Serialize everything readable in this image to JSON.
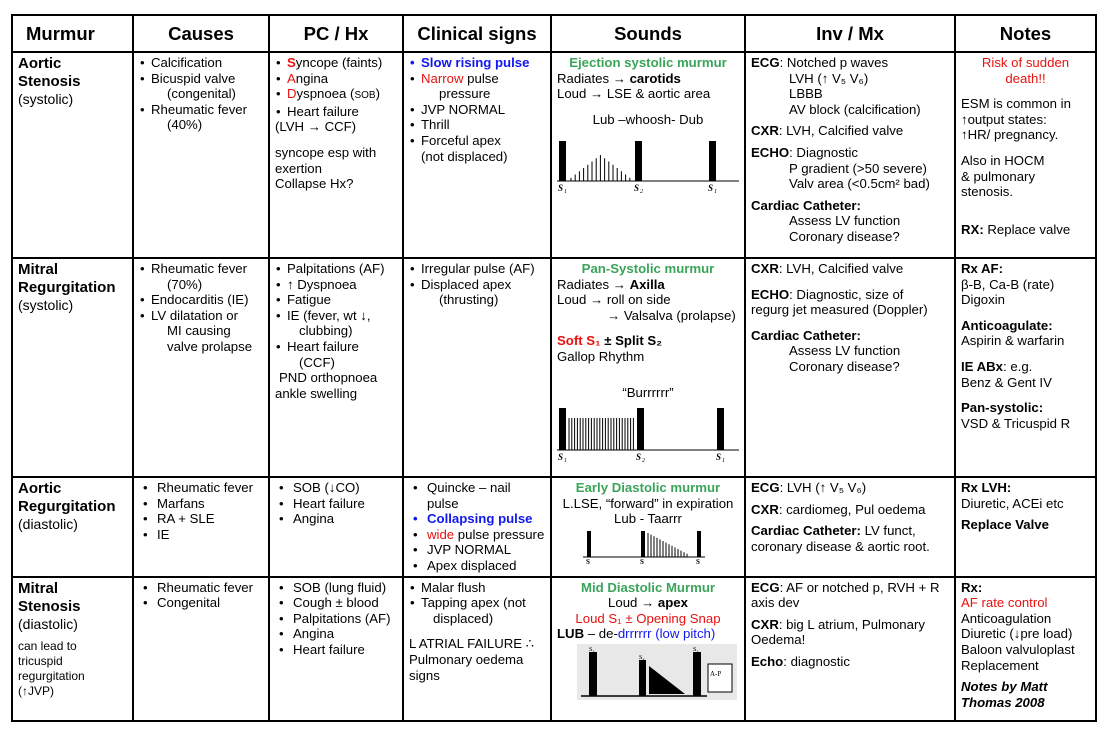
{
  "headers": [
    "Murmur",
    "Causes",
    "PC / Hx",
    "Clinical signs",
    "Sounds",
    "Inv / Mx",
    "Notes"
  ],
  "as": {
    "name1": "Aortic",
    "name2": "Stenosis",
    "type": "(systolic)",
    "causes": [
      "Calcification",
      "Bicuspid valve",
      "(congenital)",
      "Rheumatic fever",
      "(40%)"
    ],
    "pc_s": "S",
    "pc_syncope_rest": "yncope (faints)",
    "pc_a": "A",
    "pc_angina_rest": "ngina",
    "pc_d": "D",
    "pc_dysp_rest": "yspnoea (",
    "pc_sob": "SOB",
    "pc_close": ")",
    "pc_hf": "Heart failure",
    "pc_hf2": "(LVH → CCF)",
    "pc_note1": "syncope esp with",
    "pc_note2": "exertion",
    "pc_note3": "Collapse Hx?",
    "sign_slow": "Slow rising pulse",
    "sign_narrow": "Narrow",
    "sign_narrow_rest": " pulse",
    "sign_pressure": "pressure",
    "sign_jvp": "JVP NORMAL",
    "sign_thrill": "Thrill",
    "sign_apex": "Forceful apex",
    "sign_apex2": "(not displaced)",
    "sound_title": "Ejection systolic murmur",
    "sound_rad": "Radiates → ",
    "sound_rad_b": "carotids",
    "sound_loud": "Loud → LSE & aortic area",
    "sound_onom": "Lub –whoosh- Dub",
    "inv_ecg_l": "ECG",
    "inv_ecg_t": ": Notched p waves",
    "inv_lvh": "LVH (↑ V₅ V₆)",
    "inv_lbbb": "LBBB",
    "inv_av": "AV block (calcification)",
    "inv_cxr_l": "CXR",
    "inv_cxr_t": ": LVH, Calcified valve",
    "inv_echo_l": "ECHO",
    "inv_echo_t": ": Diagnostic",
    "inv_pgrad": "P gradient (>50 severe)",
    "inv_valve": "Valv area (<0.5cm² bad)",
    "inv_cath": "Cardiac Catheter:",
    "inv_lv": "Assess LV function",
    "inv_cor": "Coronary disease?",
    "note_risk1": "Risk of sudden",
    "note_risk2": "death!!",
    "note_esm1": "ESM is common in",
    "note_esm2": "↑output states:",
    "note_esm3": "↑HR/ pregnancy.",
    "note_hocm1": "Also in HOCM",
    "note_hocm2": "& pulmonary",
    "note_hocm3": "stenosis.",
    "note_rx_l": "RX:",
    "note_rx_t": " Replace valve"
  },
  "mr": {
    "name1": "Mitral",
    "name2": "Regurgitation",
    "type": "(systolic)",
    "causes": [
      "Rheumatic fever",
      "(70%)",
      "Endocarditis (IE)",
      "LV dilatation or",
      "MI causing",
      "valve prolapse"
    ],
    "pc": [
      "Palpitations (AF)",
      "↑ Dyspnoea",
      "Fatigue",
      "IE (fever, wt ↓,",
      "clubbing)",
      "Heart failure",
      "(CCF)",
      "PND orthopnoea",
      "ankle swelling"
    ],
    "signs": [
      "Irregular pulse (AF)",
      "Displaced apex",
      "(thrusting)"
    ],
    "sound_title": "Pan-Systolic murmur",
    "sound_rad": "Radiates → ",
    "sound_rad_b": "Axilla",
    "sound_loud": "Loud → roll on side",
    "sound_val": "→ Valsalva (prolapse)",
    "sound_soft": "Soft S₁",
    "sound_pm": " ± ",
    "sound_split": "Split S₂",
    "sound_gallop": "Gallop Rhythm",
    "sound_onom": "“Burrrrrr”",
    "inv_cxr_l": "CXR",
    "inv_cxr_t": ": LVH, Calcified valve",
    "inv_echo_l": "ECHO",
    "inv_echo_t": ": Diagnostic, size of",
    "inv_echo_t2": "regurg jet measured (Doppler)",
    "inv_cath": "Cardiac Catheter:",
    "inv_lv": "Assess LV function",
    "inv_cor": "Coronary disease?",
    "note_rxaf": "Rx AF:",
    "note_rxaf_t": "β-B, Ca-B (rate)",
    "note_dig": "Digoxin",
    "note_anti": "Anticoagulate:",
    "note_anti_t": "Aspirin & warfarin",
    "note_ie": "IE ABx",
    "note_ie_t": ": e.g.",
    "note_benz": "Benz & Gent IV",
    "note_pan": "Pan-systolic:",
    "note_pan_t": "VSD & Tricuspid R"
  },
  "ar": {
    "name1": "Aortic",
    "name2": "Regurgitation",
    "type": "(diastolic)",
    "causes": [
      "Rheumatic fever",
      "Marfans",
      "RA + SLE",
      "IE"
    ],
    "pc": [
      "SOB (↓CO)",
      "Heart failure",
      "Angina"
    ],
    "sign_quincke": "Quincke – nail pulse",
    "sign_collapse": "Collapsing pulse",
    "sign_wide": "wide",
    "sign_wide_rest": " pulse pressure",
    "sign_jvp": "JVP NORMAL",
    "sign_apex": "Apex displaced",
    "sound_title": "Early Diastolic murmur",
    "sound_line": "L.LSE, “forward” in expiration",
    "sound_onom": "Lub - Taarrr",
    "inv_ecg_l": "ECG",
    "inv_ecg_t": ": LVH (↑ V₅ V₆)",
    "inv_cxr_l": "CXR",
    "inv_cxr_t": ": cardiomeg, Pul oedema",
    "inv_cath": "Cardiac Catheter:",
    "inv_cath_t": " LV funct,",
    "inv_cath_t2": "coronary disease & aortic root.",
    "note_rx": "Rx LVH:",
    "note_rx_t": "Diuretic, ACEi etc",
    "note_replace": "Replace Valve"
  },
  "ms": {
    "name1": "Mitral",
    "name2": "Stenosis",
    "type": "(diastolic)",
    "lead1": "can lead to",
    "lead2": "tricuspid",
    "lead3": "regurgitation",
    "lead4": "(↑JVP)",
    "causes": [
      "Rheumatic fever",
      "Congenital"
    ],
    "pc": [
      "SOB (lung fluid)",
      "Cough ± blood",
      "Palpitations (AF)",
      "Angina",
      "Heart failure"
    ],
    "sign_malar": "Malar flush",
    "sign_tap": "Tapping apex (not",
    "sign_tap2": "displaced)",
    "sign_laf": "L ATRIAL FAILURE ∴",
    "sign_pul": "Pulmonary oedema",
    "sign_signs": "signs",
    "sound_title": "Mid Diastolic Murmur",
    "sound_loud": "Loud → ",
    "sound_loud_b": "apex",
    "sound_red": "Loud S₁ ± Opening Snap",
    "sound_lub": "LUB",
    "sound_lub_t": " – de-",
    "sound_lub_blue": "drrrrrr (low pitch)",
    "inv_ecg_l": "ECG",
    "inv_ecg_t": ": AF or notched p, RVH + R",
    "inv_ecg_t2": "axis dev",
    "inv_cxr_l": "CXR",
    "inv_cxr_t": ": big L atrium, Pulmonary",
    "inv_cxr_t2": "Oedema!",
    "inv_echo_l": "Echo",
    "inv_echo_t": ": diagnostic",
    "note_rx": "Rx:",
    "note_af": "AF rate control",
    "note_list": [
      "Anticoagulation",
      "Diuretic (↓pre load)",
      "Baloon valvuloplast",
      "Replacement"
    ],
    "note_by1": "Notes by Matt",
    "note_by2": "Thomas 2008"
  },
  "labels": {
    "s1": "S",
    "s1sub": "1",
    "s2": "S",
    "s2sub": "2",
    "s1b": "S",
    "s1bsub": "1",
    "pad": "A-P",
    "s1ms": "S₁",
    "s2ms": "S₂"
  }
}
